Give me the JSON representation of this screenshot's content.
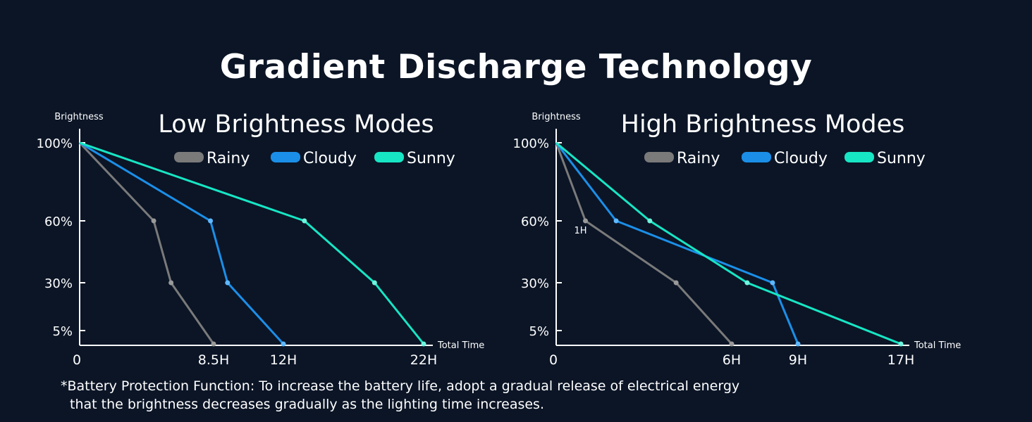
{
  "title": "Gradient Discharge Technology",
  "footnote": {
    "line1": "*Battery Protection Function: To increase the battery life, adopt a gradual release of electrical energy",
    "line2": "that the brightness decreases gradually as the lighting time increases."
  },
  "colors": {
    "background": "#0b1526",
    "Rainy": "#7a7a7a",
    "Cloudy": "#1b8fe8",
    "Sunny": "#17e6c4"
  },
  "chart_data": [
    {
      "type": "line",
      "title": "Low Brightness Modes",
      "ylabel": "Brightness",
      "xlabel": "Total Time",
      "y_ticks": [
        "100%",
        "60%",
        "30%",
        "5%"
      ],
      "y_tick_values": [
        100,
        60,
        30,
        5
      ],
      "x_ticks": [
        "0",
        "8.5H",
        "12H",
        "22H"
      ],
      "x_tick_values": [
        0,
        8.5,
        12,
        22
      ],
      "legend": "top",
      "grid": false,
      "series": [
        {
          "name": "Rainy",
          "x": [
            0,
            4.7,
            5.8,
            8.5
          ],
          "y": [
            100,
            60,
            30,
            0
          ]
        },
        {
          "name": "Cloudy",
          "x": [
            0,
            8.3,
            9.2,
            12
          ],
          "y": [
            100,
            60,
            30,
            0
          ]
        },
        {
          "name": "Sunny",
          "x": [
            0,
            13.5,
            18.5,
            22
          ],
          "y": [
            100,
            60,
            30,
            0
          ]
        }
      ]
    },
    {
      "type": "line",
      "title": "High Brightness Modes",
      "ylabel": "Brightness",
      "xlabel": "Total Time",
      "y_ticks": [
        "100%",
        "60%",
        "30%",
        "5%"
      ],
      "y_tick_values": [
        100,
        60,
        30,
        5
      ],
      "x_ticks": [
        "0",
        "6H",
        "9H",
        "17H"
      ],
      "x_tick_values": [
        0,
        6,
        9,
        17
      ],
      "legend": "top",
      "grid": false,
      "annotations": [
        {
          "text": "1H",
          "series": "Rainy",
          "x": 1,
          "y": 60
        }
      ],
      "series": [
        {
          "name": "Rainy",
          "x": [
            0,
            1,
            4.1,
            6
          ],
          "y": [
            100,
            60,
            30,
            0
          ]
        },
        {
          "name": "Cloudy",
          "x": [
            0,
            2.05,
            7.85,
            9
          ],
          "y": [
            100,
            60,
            30,
            0
          ]
        },
        {
          "name": "Sunny",
          "x": [
            0,
            3.2,
            6.7,
            17
          ],
          "y": [
            100,
            60,
            30,
            0
          ]
        }
      ]
    }
  ]
}
